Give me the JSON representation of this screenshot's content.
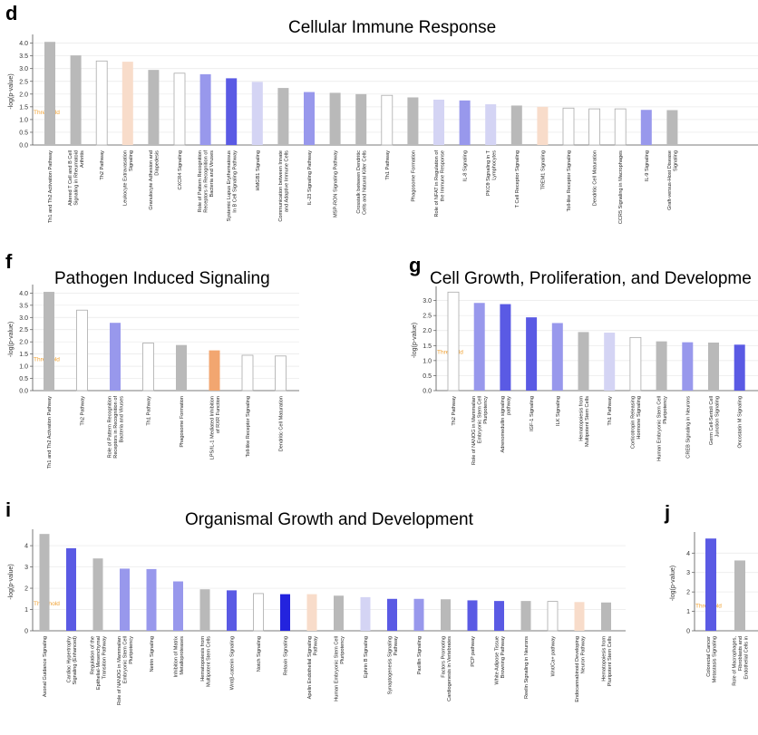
{
  "colors": {
    "gray": "#b9b9b9",
    "white": "#ffffff",
    "peach": "#f8dcca",
    "orange": "#f2a670",
    "blue_light": "#d4d4f4",
    "blue_mid": "#9898ec",
    "blue": "#5a5ae4",
    "blue_dark": "#2323de",
    "threshold": "#f0a030",
    "outline": "#aaaaaa",
    "grid": "#e8e8e8"
  },
  "panels": {
    "d": {
      "letter": "d",
      "title": "Cellular Immune Response"
    },
    "f": {
      "letter": "f",
      "title": "Pathogen Induced Signaling"
    },
    "g": {
      "letter": "g",
      "title": "Cell Growth, Proliferation, and Developme"
    },
    "i": {
      "letter": "i",
      "title": "Organismal Growth and Development"
    },
    "j": {
      "letter": "j",
      "title": ""
    }
  },
  "chart_data": [
    {
      "panel": "d",
      "type": "bar",
      "title": "Cellular Immune Response",
      "ylabel": "-log(p-value)",
      "ylim": [
        0,
        4.2
      ],
      "yticks": [
        "0.0",
        "0.5",
        "1.0",
        "1.5",
        "2.0",
        "2.5",
        "3.0",
        "3.5",
        "4.0"
      ],
      "threshold_label": "Threshold",
      "threshold_value": 1.3,
      "categories": [
        "Th1 and Th2 Activation Pathway",
        "Altered T Cell and B Cell Signaling in Rheumatoid Arthritis",
        "Th2 Pathway",
        "Leukocyte Extravasation Signaling",
        "Granulocyte Adhesion and Diapedesis",
        "CXCR4 Signaling",
        "Role of Pattern Recognition Receptors in Recognition of Bacteria and Viruses",
        "Systemic Lupus Erythematosus In B Cell Signaling Pathway",
        "HMGB1 Signaling",
        "Communication between Innate and Adaptive Immune Cells",
        "IL-23 Signaling Pathway",
        "MSP-RON Signaling Pathway",
        "Crosstalk between Dendritic Cells and Natural Killer Cells",
        "Th1 Pathway",
        "Phagosome Formation",
        "Role of NFAT in Regulation of the Immune Response",
        "IL-8 Signaling",
        "PKCθ Signaling in T Lymphocytes",
        "T Cell Receptor Signaling",
        "TREM1 Signaling",
        "Toll-like Receptor Signaling",
        "Dendritic Cell Maturation",
        "CCR5 Signaling in Macrophages",
        "IL-9 Signaling",
        "Graft-versus-Host Disease Signaling"
      ],
      "values": [
        4.05,
        3.52,
        3.3,
        3.27,
        2.95,
        2.82,
        2.78,
        2.62,
        2.48,
        2.24,
        2.08,
        2.05,
        2.0,
        1.95,
        1.87,
        1.78,
        1.75,
        1.6,
        1.55,
        1.5,
        1.45,
        1.42,
        1.42,
        1.38,
        1.37
      ],
      "colors": [
        "gray",
        "gray",
        "white",
        "peach",
        "gray",
        "white",
        "blue_mid",
        "blue",
        "blue_light",
        "gray",
        "blue_mid",
        "gray",
        "gray",
        "white",
        "gray",
        "blue_light",
        "blue_mid",
        "blue_light",
        "gray",
        "peach",
        "white",
        "white",
        "white",
        "blue_mid",
        "gray"
      ]
    },
    {
      "panel": "f",
      "type": "bar",
      "title": "Pathogen Induced Signaling",
      "ylabel": "-log(p-value)",
      "ylim": [
        0,
        4.2
      ],
      "yticks": [
        "0.0",
        "0.5",
        "1.0",
        "1.5",
        "2.0",
        "2.5",
        "3.0",
        "3.5",
        "4.0"
      ],
      "threshold_label": "Threshold",
      "threshold_value": 1.3,
      "categories": [
        "Th1 and Th2 Activation Pathway",
        "Th2 Pathway",
        "Role of Pattern Recognition Receptors in Recognition of Bacteria and Viruses",
        "Th1 Pathway",
        "Phagosome Formation",
        "LPS/IL-1 Mediated Inhibition of RXR Function",
        "Toll-like Receptor Signaling",
        "Dendritic Cell Maturation"
      ],
      "values": [
        4.05,
        3.3,
        2.78,
        1.95,
        1.87,
        1.65,
        1.45,
        1.42
      ],
      "colors": [
        "gray",
        "white",
        "blue_mid",
        "white",
        "gray",
        "orange",
        "white",
        "white"
      ]
    },
    {
      "panel": "g",
      "type": "bar",
      "title": "Cell Growth, Proliferation, and Developme",
      "ylabel": "-log(p-value)",
      "ylim": [
        0,
        3.35
      ],
      "yticks": [
        "0.0",
        "0.5",
        "1.0",
        "1.5",
        "2.0",
        "2.5",
        "3.0"
      ],
      "threshold_label": "Threshold",
      "threshold_value": 1.3,
      "categories": [
        "Th2 Pathway",
        "Role of NANOG in Mammalian Embryonic Stem Cell Pluripotency",
        "Adrenomedullin signaling pathway",
        "IGF-1 Signaling",
        "ILK Signaling",
        "Hematopoiesis from Multipotent Stem Cells",
        "Th1 Pathway",
        "Corticotropin Releasing Hormone Signaling",
        "Human Embryonic Stem Cell Pluripotency",
        "CREB Signaling in Neurons",
        "Germ Cell-Sertoli Cell Junction Signaling",
        "Oncostatin M Signaling"
      ],
      "values": [
        3.28,
        2.92,
        2.88,
        2.44,
        2.25,
        1.95,
        1.93,
        1.77,
        1.64,
        1.61,
        1.6,
        1.53
      ],
      "colors": [
        "white",
        "blue_mid",
        "blue",
        "blue",
        "blue_mid",
        "gray",
        "blue_light",
        "white",
        "gray",
        "blue_mid",
        "gray",
        "blue"
      ]
    },
    {
      "panel": "i",
      "type": "bar",
      "title": "Organismal Growth and Development",
      "ylabel": "-log(p-value)",
      "ylim": [
        0,
        4.6
      ],
      "yticks": [
        "0",
        "1",
        "2",
        "3",
        "4"
      ],
      "threshold_label": "Threshold",
      "threshold_value": 1.3,
      "categories": [
        "Axonal Guidance Signaling",
        "Cardiac Hypertrophy Signaling (Enhanced)",
        "Regulation of the Epithelial-Mesenchymal Transition Pathway",
        "Role of NANOG in Mammalian Embryonic Stem Cell Pluripotency",
        "Netrin Signaling",
        "Inhibition of Matrix Metalloproteases",
        "Hematopoiesis from Multipotent Stem Cells",
        "Wnt/β-catenin Signaling",
        "Notch Signaling",
        "Relaxin Signaling",
        "Apelin Endothelial Signaling Pathway",
        "Human Embryonic Stem Cell Pluripotency",
        "Ephrin B Signaling",
        "Synaptogenesis Signaling Pathway",
        "Paxillin Signaling",
        "Factors Promoting Cardiogenesis in Vertebrates",
        "PCP pathway",
        "White Adipose Tissue Browning Pathway",
        "Reelin Signaling in Neurons",
        "Wnt/Ca+ pathway",
        "Endocannabinoid Developing Neuron Pathway",
        "Hematopoiesis from Pluripotent Stem Cells"
      ],
      "values": [
        4.55,
        3.88,
        3.4,
        2.92,
        2.9,
        2.32,
        1.95,
        1.9,
        1.75,
        1.72,
        1.72,
        1.65,
        1.58,
        1.5,
        1.5,
        1.48,
        1.43,
        1.4,
        1.4,
        1.38,
        1.35,
        1.33
      ],
      "colors": [
        "gray",
        "blue",
        "gray",
        "blue_mid",
        "blue_mid",
        "blue_mid",
        "gray",
        "blue",
        "white",
        "blue_dark",
        "peach",
        "gray",
        "blue_light",
        "blue",
        "blue_mid",
        "gray",
        "blue",
        "blue",
        "gray",
        "white",
        "peach",
        "gray"
      ]
    },
    {
      "panel": "j",
      "type": "bar",
      "title": "",
      "ylabel": "-log(p-value)",
      "ylim": [
        0,
        4.9
      ],
      "yticks": [
        "0",
        "1",
        "2",
        "3",
        "4"
      ],
      "threshold_label": "Threshold",
      "threshold_value": 1.3,
      "categories": [
        "Colorectal Cancer Metastasis Signaling",
        "Role of Macrophages, Fibroblasts and Endothelial Cells in Rheumatoid Arthritis"
      ],
      "values": [
        4.75,
        3.62
      ],
      "colors": [
        "blue",
        "gray"
      ]
    }
  ]
}
